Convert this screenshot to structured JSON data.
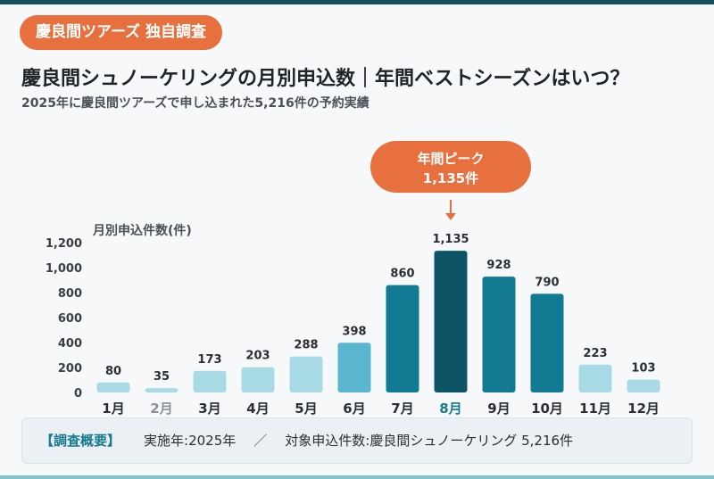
{
  "badge": "慶良間ツアーズ 独自調査",
  "title": "慶良間シュノーケリングの月別申込数｜年間ベストシーズンはいつ？",
  "subtitle": "2025年に慶良間ツアーズで申し込まれた5,216件の予約実績",
  "colors": {
    "low": "#a9dbe6",
    "mid": "#5ab6cf",
    "high": "#127a93",
    "peak": "#0e5467",
    "accent": "#e8703e"
  },
  "chart_data": {
    "type": "bar",
    "ylabel": "月別申込件数(件)",
    "ylim": [
      0,
      1200
    ],
    "yticks": [
      0,
      200,
      400,
      600,
      800,
      1000,
      1200
    ],
    "ytick_labels": [
      "0",
      "200",
      "400",
      "600",
      "800",
      "1,000",
      "1,200"
    ],
    "categories": [
      "1月",
      "2月",
      "3月",
      "4月",
      "5月",
      "6月",
      "7月",
      "8月",
      "9月",
      "10月",
      "11月",
      "12月"
    ],
    "values": [
      80,
      35,
      173,
      203,
      288,
      398,
      860,
      1135,
      928,
      790,
      223,
      103
    ],
    "value_labels": [
      "80",
      "35",
      "173",
      "203",
      "288",
      "398",
      "860",
      "1,135",
      "928",
      "790",
      "223",
      "103"
    ],
    "bar_colors": [
      "low",
      "low",
      "low",
      "low",
      "low",
      "mid",
      "high",
      "peak",
      "high",
      "high",
      "low",
      "low"
    ],
    "peak_callout": {
      "title": "年間ピーク",
      "value": "1,135件",
      "month": "8月"
    }
  },
  "summary": {
    "label": "【調査概要】",
    "year": "実施年:2025年",
    "separator": "／",
    "target": "対象申込件数:慶良間シュノーケリング 5,216件"
  }
}
